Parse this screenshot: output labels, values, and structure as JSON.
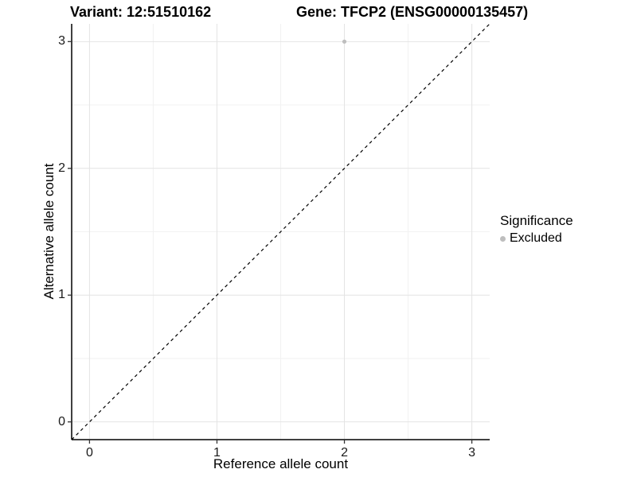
{
  "header": {
    "variant_title": "Variant: 12:51510162",
    "gene_title": "Gene: TFCP2 (ENSG00000135457)"
  },
  "chart_data": {
    "type": "scatter",
    "title_left": "Variant: 12:51510162",
    "title_right": "Gene: TFCP2 (ENSG00000135457)",
    "xlabel": "Reference allele count",
    "ylabel": "Alternative allele count",
    "xlim": [
      -0.14,
      3.14
    ],
    "ylim": [
      -0.14,
      3.14
    ],
    "xticks": [
      0,
      1,
      2,
      3
    ],
    "yticks": [
      0,
      1,
      2,
      3
    ],
    "minor_xticks": [
      0.5,
      1.5,
      2.5
    ],
    "minor_yticks": [
      0.5,
      1.5,
      2.5
    ],
    "grid": "major+minor",
    "reference_line": {
      "type": "abline",
      "slope": 1,
      "intercept": 0,
      "style": "dashed",
      "color": "#000000"
    },
    "series": [
      {
        "name": "Excluded",
        "color": "#bebebe",
        "points": [
          {
            "x": 2,
            "y": 3
          }
        ]
      }
    ],
    "legend": {
      "title": "Significance",
      "position": "right",
      "items": [
        {
          "label": "Excluded",
          "color": "#bebebe",
          "marker": "circle"
        }
      ]
    },
    "colors": {
      "grid_major": "#e4e4e4",
      "grid_minor": "#f2f2f2",
      "axis_line": "#000000",
      "tick_mark": "#333333",
      "text": "#000000"
    }
  }
}
